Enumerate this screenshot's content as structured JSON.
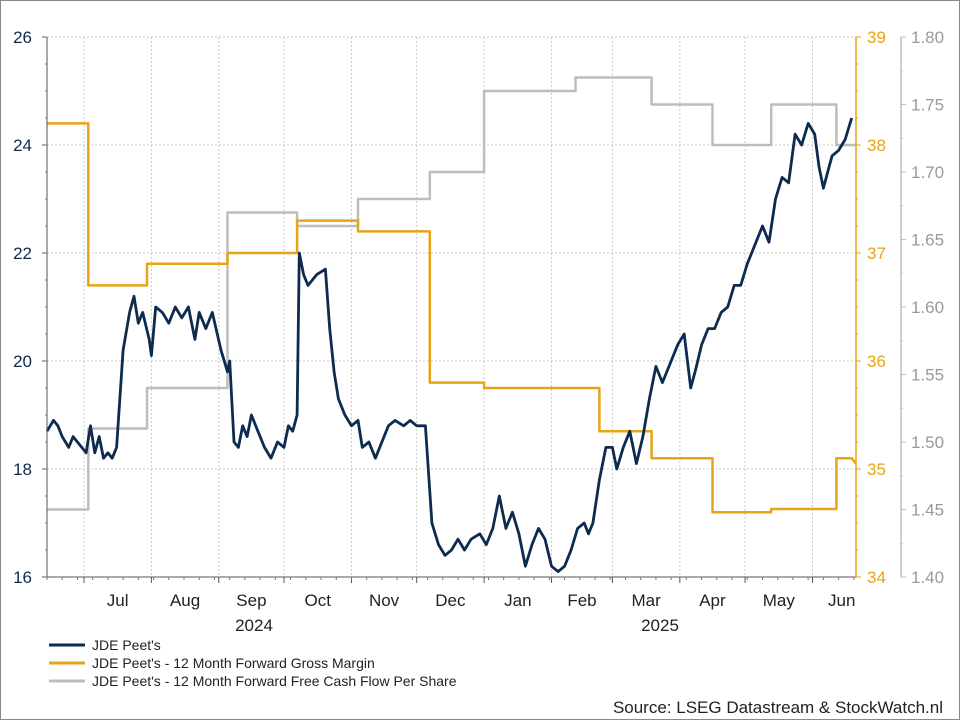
{
  "chart_data": {
    "type": "line",
    "x_axis": {
      "months": [
        "Jul",
        "Aug",
        "Sep",
        "Oct",
        "Nov",
        "Dec",
        "Jan",
        "Feb",
        "Mar",
        "Apr",
        "May",
        "Jun"
      ],
      "years": [
        "2024",
        "2025"
      ]
    },
    "y_axes": {
      "left": {
        "ticks": [
          "16",
          "18",
          "20",
          "22",
          "24",
          "26"
        ],
        "range": [
          16,
          26
        ],
        "color": "#0d2b4e"
      },
      "right_orange": {
        "ticks": [
          "34",
          "35",
          "36",
          "37",
          "38",
          "39"
        ],
        "range": [
          34,
          39
        ],
        "color": "#e8a317"
      },
      "right_grey": {
        "ticks": [
          "1.40",
          "1.45",
          "1.50",
          "1.55",
          "1.60",
          "1.65",
          "1.70",
          "1.75",
          "1.80"
        ],
        "range": [
          1.4,
          1.8
        ],
        "color": "#bdbdbd"
      }
    },
    "grid": true,
    "legend_position": "bottom-left",
    "series": [
      {
        "name": "JDE Peet's",
        "axis": "left",
        "color": "#0d2b4e",
        "values": [
          [
            "2024-06-14",
            18.7
          ],
          [
            "2024-06-17",
            18.9
          ],
          [
            "2024-06-19",
            18.8
          ],
          [
            "2024-06-21",
            18.6
          ],
          [
            "2024-06-24",
            18.4
          ],
          [
            "2024-06-26",
            18.6
          ],
          [
            "2024-06-28",
            18.5
          ],
          [
            "2024-07-02",
            18.3
          ],
          [
            "2024-07-04",
            18.8
          ],
          [
            "2024-07-06",
            18.3
          ],
          [
            "2024-07-08",
            18.6
          ],
          [
            "2024-07-10",
            18.2
          ],
          [
            "2024-07-12",
            18.3
          ],
          [
            "2024-07-14",
            18.2
          ],
          [
            "2024-07-16",
            18.4
          ],
          [
            "2024-07-19",
            20.2
          ],
          [
            "2024-07-22",
            20.9
          ],
          [
            "2024-07-24",
            21.2
          ],
          [
            "2024-07-26",
            20.7
          ],
          [
            "2024-07-28",
            20.9
          ],
          [
            "2024-07-31",
            20.4
          ],
          [
            "2024-08-01",
            20.1
          ],
          [
            "2024-08-03",
            21.0
          ],
          [
            "2024-08-06",
            20.9
          ],
          [
            "2024-08-09",
            20.7
          ],
          [
            "2024-08-12",
            21.0
          ],
          [
            "2024-08-15",
            20.8
          ],
          [
            "2024-08-18",
            21.0
          ],
          [
            "2024-08-21",
            20.4
          ],
          [
            "2024-08-23",
            20.9
          ],
          [
            "2024-08-26",
            20.6
          ],
          [
            "2024-08-29",
            20.9
          ],
          [
            "2024-09-02",
            20.2
          ],
          [
            "2024-09-05",
            19.8
          ],
          [
            "2024-09-06",
            20.0
          ],
          [
            "2024-09-08",
            18.5
          ],
          [
            "2024-09-10",
            18.4
          ],
          [
            "2024-09-12",
            18.8
          ],
          [
            "2024-09-14",
            18.6
          ],
          [
            "2024-09-16",
            19.0
          ],
          [
            "2024-09-19",
            18.7
          ],
          [
            "2024-09-22",
            18.4
          ],
          [
            "2024-09-25",
            18.2
          ],
          [
            "2024-09-28",
            18.5
          ],
          [
            "2024-10-01",
            18.4
          ],
          [
            "2024-10-03",
            18.8
          ],
          [
            "2024-10-05",
            18.7
          ],
          [
            "2024-10-07",
            19.0
          ],
          [
            "2024-10-08",
            22.0
          ],
          [
            "2024-10-10",
            21.6
          ],
          [
            "2024-10-12",
            21.4
          ],
          [
            "2024-10-16",
            21.6
          ],
          [
            "2024-10-20",
            21.7
          ],
          [
            "2024-10-22",
            20.6
          ],
          [
            "2024-10-24",
            19.8
          ],
          [
            "2024-10-26",
            19.3
          ],
          [
            "2024-10-29",
            19.0
          ],
          [
            "2024-11-01",
            18.8
          ],
          [
            "2024-11-04",
            18.9
          ],
          [
            "2024-11-06",
            18.4
          ],
          [
            "2024-11-09",
            18.5
          ],
          [
            "2024-11-12",
            18.2
          ],
          [
            "2024-11-15",
            18.5
          ],
          [
            "2024-11-18",
            18.8
          ],
          [
            "2024-11-21",
            18.9
          ],
          [
            "2024-11-25",
            18.8
          ],
          [
            "2024-11-28",
            18.9
          ],
          [
            "2024-12-01",
            18.8
          ],
          [
            "2024-12-05",
            18.8
          ],
          [
            "2024-12-08",
            17.0
          ],
          [
            "2024-12-11",
            16.6
          ],
          [
            "2024-12-14",
            16.4
          ],
          [
            "2024-12-17",
            16.5
          ],
          [
            "2024-12-20",
            16.7
          ],
          [
            "2024-12-23",
            16.5
          ],
          [
            "2024-12-26",
            16.7
          ],
          [
            "2024-12-30",
            16.8
          ],
          [
            "2025-01-02",
            16.6
          ],
          [
            "2025-01-05",
            16.9
          ],
          [
            "2025-01-08",
            17.5
          ],
          [
            "2025-01-11",
            16.9
          ],
          [
            "2025-01-14",
            17.2
          ],
          [
            "2025-01-17",
            16.8
          ],
          [
            "2025-01-20",
            16.2
          ],
          [
            "2025-01-23",
            16.6
          ],
          [
            "2025-01-26",
            16.9
          ],
          [
            "2025-01-29",
            16.7
          ],
          [
            "2025-02-01",
            16.2
          ],
          [
            "2025-02-04",
            16.1
          ],
          [
            "2025-02-07",
            16.2
          ],
          [
            "2025-02-10",
            16.5
          ],
          [
            "2025-02-13",
            16.9
          ],
          [
            "2025-02-16",
            17.0
          ],
          [
            "2025-02-18",
            16.8
          ],
          [
            "2025-02-20",
            17.0
          ],
          [
            "2025-02-23",
            17.8
          ],
          [
            "2025-02-26",
            18.4
          ],
          [
            "2025-03-01",
            18.4
          ],
          [
            "2025-03-03",
            18.0
          ],
          [
            "2025-03-06",
            18.4
          ],
          [
            "2025-03-09",
            18.7
          ],
          [
            "2025-03-12",
            18.1
          ],
          [
            "2025-03-15",
            18.6
          ],
          [
            "2025-03-18",
            19.3
          ],
          [
            "2025-03-21",
            19.9
          ],
          [
            "2025-03-24",
            19.6
          ],
          [
            "2025-03-27",
            19.9
          ],
          [
            "2025-03-31",
            20.3
          ],
          [
            "2025-04-03",
            20.5
          ],
          [
            "2025-04-06",
            19.5
          ],
          [
            "2025-04-08",
            19.8
          ],
          [
            "2025-04-11",
            20.3
          ],
          [
            "2025-04-14",
            20.6
          ],
          [
            "2025-04-17",
            20.6
          ],
          [
            "2025-04-20",
            20.9
          ],
          [
            "2025-04-23",
            21.0
          ],
          [
            "2025-04-26",
            21.4
          ],
          [
            "2025-04-29",
            21.4
          ],
          [
            "2025-05-02",
            21.8
          ],
          [
            "2025-05-06",
            22.2
          ],
          [
            "2025-05-09",
            22.5
          ],
          [
            "2025-05-12",
            22.2
          ],
          [
            "2025-05-15",
            23.0
          ],
          [
            "2025-05-18",
            23.4
          ],
          [
            "2025-05-21",
            23.3
          ],
          [
            "2025-05-24",
            24.2
          ],
          [
            "2025-05-27",
            24.0
          ],
          [
            "2025-05-30",
            24.4
          ],
          [
            "2025-06-02",
            24.2
          ],
          [
            "2025-06-04",
            23.6
          ],
          [
            "2025-06-06",
            23.2
          ],
          [
            "2025-06-08",
            23.5
          ],
          [
            "2025-06-10",
            23.8
          ],
          [
            "2025-06-13",
            23.9
          ],
          [
            "2025-06-16",
            24.1
          ],
          [
            "2025-06-19",
            24.5
          ]
        ]
      },
      {
        "name": "JDE Peet's - 12 Month Forward Gross Margin",
        "axis": "right_orange",
        "color": "#e8a317",
        "values": [
          [
            "2024-06-14",
            38.2
          ],
          [
            "2024-07-03",
            38.2
          ],
          [
            "2024-07-03",
            36.7
          ],
          [
            "2024-07-30",
            36.7
          ],
          [
            "2024-07-30",
            36.9
          ],
          [
            "2024-09-05",
            36.9
          ],
          [
            "2024-09-05",
            37.0
          ],
          [
            "2024-10-07",
            37.0
          ],
          [
            "2024-10-07",
            37.3
          ],
          [
            "2024-11-04",
            37.3
          ],
          [
            "2024-11-04",
            37.2
          ],
          [
            "2024-12-07",
            37.2
          ],
          [
            "2024-12-07",
            35.8
          ],
          [
            "2025-01-01",
            35.8
          ],
          [
            "2025-01-01",
            35.75
          ],
          [
            "2025-02-23",
            35.75
          ],
          [
            "2025-02-23",
            35.35
          ],
          [
            "2025-03-19",
            35.35
          ],
          [
            "2025-03-19",
            35.1
          ],
          [
            "2025-04-16",
            35.1
          ],
          [
            "2025-04-16",
            34.6
          ],
          [
            "2025-05-13",
            34.6
          ],
          [
            "2025-05-13",
            34.63
          ],
          [
            "2025-06-12",
            34.63
          ],
          [
            "2025-06-12",
            35.1
          ],
          [
            "2025-06-19",
            35.1
          ],
          [
            "2025-06-21",
            35.05
          ]
        ]
      },
      {
        "name": "JDE Peet's - 12 Month Forward Free Cash Flow Per Share",
        "axis": "right_grey",
        "color": "#bdbdbd",
        "values": [
          [
            "2024-06-14",
            1.45
          ],
          [
            "2024-07-03",
            1.45
          ],
          [
            "2024-07-03",
            1.51
          ],
          [
            "2024-07-30",
            1.51
          ],
          [
            "2024-07-30",
            1.54
          ],
          [
            "2024-09-05",
            1.54
          ],
          [
            "2024-09-05",
            1.67
          ],
          [
            "2024-10-07",
            1.67
          ],
          [
            "2024-10-07",
            1.66
          ],
          [
            "2024-11-04",
            1.66
          ],
          [
            "2024-11-04",
            1.68
          ],
          [
            "2024-12-07",
            1.68
          ],
          [
            "2024-12-07",
            1.7
          ],
          [
            "2025-01-01",
            1.7
          ],
          [
            "2025-01-01",
            1.76
          ],
          [
            "2025-02-12",
            1.76
          ],
          [
            "2025-02-12",
            1.77
          ],
          [
            "2025-03-19",
            1.77
          ],
          [
            "2025-03-19",
            1.75
          ],
          [
            "2025-04-16",
            1.75
          ],
          [
            "2025-04-16",
            1.72
          ],
          [
            "2025-05-13",
            1.72
          ],
          [
            "2025-05-13",
            1.75
          ],
          [
            "2025-06-12",
            1.75
          ],
          [
            "2025-06-12",
            1.72
          ],
          [
            "2025-06-21",
            1.72
          ]
        ]
      }
    ]
  },
  "source": "Source: LSEG Datastream & StockWatch.nl"
}
